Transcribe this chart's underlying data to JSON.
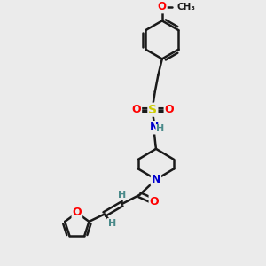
{
  "bg_color": "#ebebeb",
  "bond_color": "#1a1a1a",
  "bond_lw": 1.8,
  "atom_colors": {
    "O": "#ff0000",
    "N": "#0000cd",
    "S": "#cccc00",
    "C": "#1a1a1a",
    "H": "#4a8a8a"
  },
  "title": "",
  "figsize": [
    3.0,
    3.0
  ],
  "dpi": 100
}
